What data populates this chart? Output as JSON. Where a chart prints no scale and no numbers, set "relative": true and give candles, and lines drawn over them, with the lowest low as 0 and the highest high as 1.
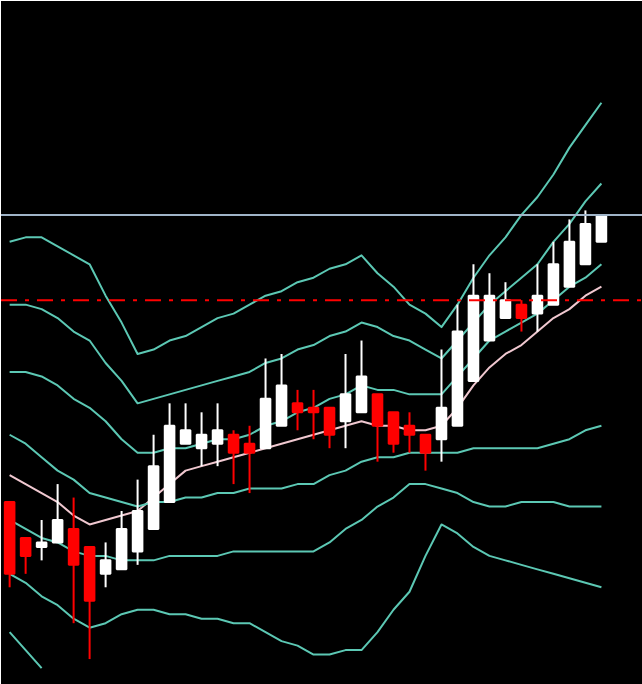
{
  "chart_data": {
    "type": "candlestick",
    "relative": true,
    "grid": false,
    "categories": [
      null,
      null,
      null,
      null,
      null,
      null,
      null,
      null,
      null,
      null,
      null,
      null,
      null,
      null,
      null,
      null,
      null,
      null,
      null,
      null,
      null,
      null,
      null,
      null,
      null,
      null,
      null,
      null,
      null,
      null,
      null,
      null,
      null,
      null,
      null,
      null,
      null,
      null
    ],
    "ohlc": [
      [
        0.35,
        0.35,
        0.16,
        0.19
      ],
      [
        0.27,
        0.27,
        0.19,
        0.23
      ],
      [
        0.25,
        0.31,
        0.22,
        0.26
      ],
      [
        0.26,
        0.39,
        0.26,
        0.31
      ],
      [
        0.29,
        0.36,
        0.08,
        0.21
      ],
      [
        0.25,
        0.25,
        0,
        0.13
      ],
      [
        0.19,
        0.26,
        0.16,
        0.22
      ],
      [
        0.2,
        0.33,
        0.2,
        0.29
      ],
      [
        0.24,
        0.4,
        0.21,
        0.33
      ],
      [
        0.29,
        0.5,
        0.29,
        0.43
      ],
      [
        0.35,
        0.57,
        0.35,
        0.52
      ],
      [
        0.48,
        0.57,
        0.48,
        0.51
      ],
      [
        0.47,
        0.55,
        0.43,
        0.5
      ],
      [
        0.48,
        0.57,
        0.43,
        0.51
      ],
      [
        0.5,
        0.51,
        0.39,
        0.46
      ],
      [
        0.48,
        0.52,
        0.37,
        0.46
      ],
      [
        0.47,
        0.67,
        0.47,
        0.58
      ],
      [
        0.52,
        0.68,
        0.52,
        0.61
      ],
      [
        0.57,
        0.6,
        0.51,
        0.55
      ],
      [
        0.56,
        0.6,
        0.49,
        0.55
      ],
      [
        0.56,
        0.56,
        0.47,
        0.5
      ],
      [
        0.53,
        0.68,
        0.47,
        0.59
      ],
      [
        0.55,
        0.71,
        0.55,
        0.63
      ],
      [
        0.59,
        0.59,
        0.44,
        0.52
      ],
      [
        0.55,
        0.55,
        0.46,
        0.48
      ],
      [
        0.52,
        0.55,
        0.46,
        0.5
      ],
      [
        0.5,
        0.5,
        0.42,
        0.46
      ],
      [
        0.49,
        0.69,
        0.44,
        0.56
      ],
      [
        0.52,
        0.79,
        0.52,
        0.73
      ],
      [
        0.62,
        0.88,
        0.62,
        0.81
      ],
      [
        0.71,
        0.86,
        0.71,
        0.81
      ],
      [
        0.76,
        0.84,
        0.76,
        0.8
      ],
      [
        0.79,
        0.8,
        0.73,
        0.76
      ],
      [
        0.77,
        0.88,
        0.73,
        0.81
      ],
      [
        0.79,
        0.93,
        0.79,
        0.88
      ],
      [
        0.83,
        0.98,
        0.83,
        0.93
      ],
      [
        0.88,
        1,
        0.88,
        0.97
      ],
      [
        0.93,
        0.99,
        0.93,
        0.99
      ]
    ],
    "colors": [
      "#ff0000",
      "#ff0000",
      "#ffffff",
      "#ffffff",
      "#ff0000",
      "#ff0000",
      "#ffffff",
      "#ffffff",
      "#ffffff",
      "#ffffff",
      "#ffffff",
      "#ffffff",
      "#ffffff",
      "#ffffff",
      "#ff0000",
      "#ff0000",
      "#ffffff",
      "#ffffff",
      "#ff0000",
      "#ff0000",
      "#ff0000",
      "#ffffff",
      "#ffffff",
      "#ff0000",
      "#ff0000",
      "#ff0000",
      "#ff0000",
      "#ffffff",
      "#ffffff",
      "#ffffff",
      "#ffffff",
      "#ffffff",
      "#ff0000",
      "#ffffff",
      "#ffffff",
      "#ffffff",
      "#ffffff",
      "#ffffff"
    ],
    "series": [
      {
        "type": "line",
        "color": "#5cc8b4",
        "values": [
          0.93,
          0.94,
          0.94,
          0.92,
          0.9,
          0.88,
          0.81,
          0.75,
          0.68,
          0.69,
          0.71,
          0.72,
          0.74,
          0.76,
          0.77,
          0.79,
          0.81,
          0.82,
          0.84,
          0.85,
          0.87,
          0.88,
          0.9,
          0.86,
          0.83,
          0.79,
          0.77,
          0.74,
          0.79,
          0.85,
          0.9,
          0.94,
          0.99,
          1.03,
          1.08,
          1.14,
          1.19,
          1.24
        ]
      },
      {
        "type": "line",
        "color": "#5cc8b4",
        "values": [
          0.79,
          0.79,
          0.78,
          0.76,
          0.73,
          0.71,
          0.66,
          0.62,
          0.57,
          0.58,
          0.59,
          0.6,
          0.61,
          0.62,
          0.63,
          0.64,
          0.66,
          0.67,
          0.69,
          0.7,
          0.72,
          0.73,
          0.75,
          0.74,
          0.72,
          0.71,
          0.69,
          0.67,
          0.71,
          0.75,
          0.79,
          0.82,
          0.85,
          0.88,
          0.93,
          0.97,
          1.02,
          1.06
        ]
      },
      {
        "type": "line",
        "color": "#5cc8b4",
        "values": [
          0.64,
          0.64,
          0.63,
          0.61,
          0.58,
          0.56,
          0.53,
          0.49,
          0.46,
          0.46,
          0.47,
          0.47,
          0.48,
          0.49,
          0.49,
          0.5,
          0.52,
          0.53,
          0.55,
          0.56,
          0.58,
          0.59,
          0.61,
          0.6,
          0.6,
          0.59,
          0.59,
          0.59,
          0.63,
          0.67,
          0.71,
          0.73,
          0.75,
          0.77,
          0.8,
          0.83,
          0.85,
          0.88
        ]
      },
      {
        "type": "line",
        "color": "#f0c8d0",
        "values": [
          0.41,
          0.39,
          0.37,
          0.35,
          0.32,
          0.3,
          0.31,
          0.32,
          0.33,
          0.36,
          0.39,
          0.42,
          0.43,
          0.44,
          0.45,
          0.46,
          0.47,
          0.48,
          0.49,
          0.5,
          0.51,
          0.52,
          0.53,
          0.52,
          0.52,
          0.51,
          0.51,
          0.52,
          0.56,
          0.61,
          0.65,
          0.68,
          0.7,
          0.73,
          0.76,
          0.78,
          0.81,
          0.83
        ]
      },
      {
        "type": "line",
        "color": "#5cc8b4",
        "values": [
          0.5,
          0.48,
          0.45,
          0.42,
          0.4,
          0.37,
          0.36,
          0.35,
          0.34,
          0.35,
          0.35,
          0.36,
          0.36,
          0.37,
          0.37,
          0.38,
          0.38,
          0.38,
          0.39,
          0.39,
          0.41,
          0.42,
          0.44,
          0.45,
          0.45,
          0.46,
          0.46,
          0.46,
          0.46,
          0.47,
          0.47,
          0.47,
          0.47,
          0.47,
          0.48,
          0.49,
          0.51,
          0.52
        ]
      },
      {
        "type": "line",
        "color": "#5cc8b4",
        "values": [
          0.31,
          0.29,
          0.27,
          0.26,
          0.24,
          0.23,
          0.23,
          0.22,
          0.22,
          0.22,
          0.23,
          0.23,
          0.23,
          0.23,
          0.24,
          0.24,
          0.24,
          0.24,
          0.24,
          0.24,
          0.26,
          0.29,
          0.31,
          0.34,
          0.36,
          0.39,
          0.39,
          0.38,
          0.37,
          0.35,
          0.34,
          0.34,
          0.35,
          0.35,
          0.35,
          0.34,
          0.34,
          0.34
        ]
      },
      {
        "type": "line",
        "color": "#5cc8b4",
        "values": [
          0.19,
          0.17,
          0.14,
          0.12,
          0.09,
          0.07,
          0.08,
          0.1,
          0.11,
          0.11,
          0.1,
          0.1,
          0.09,
          0.09,
          0.08,
          0.08,
          0.06,
          0.04,
          0.03,
          0.01,
          0.01,
          0.02,
          0.02,
          0.06,
          0.11,
          0.15,
          0.23,
          0.3,
          0.28,
          0.25,
          0.23,
          0.22,
          0.21,
          0.2,
          0.19,
          0.18,
          0.17,
          0.16
        ]
      },
      {
        "type": "line",
        "color": "#5cc8b4",
        "values": [
          0.06,
          0.02,
          -0.02,
          null,
          null,
          null,
          null,
          null,
          null,
          null,
          null,
          null,
          null,
          null,
          null,
          null,
          null,
          null,
          null,
          null,
          null,
          null,
          null,
          null,
          null,
          null,
          null,
          null,
          null,
          null,
          null,
          null,
          null,
          null,
          null,
          null,
          null,
          null
        ]
      }
    ],
    "ref_lines": [
      {
        "axis": "y",
        "value": 0.99,
        "color": "#a0b4c8",
        "line_style": "solid"
      },
      {
        "axis": "y",
        "value": 0.8,
        "color": "#ff0000",
        "line_style": "dashed"
      }
    ]
  }
}
